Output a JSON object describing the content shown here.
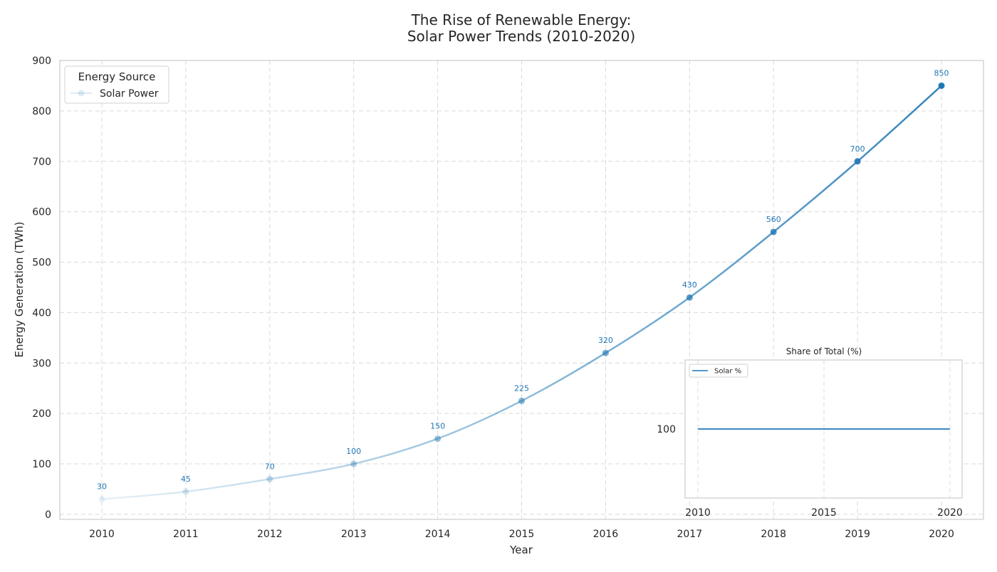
{
  "chart_data": [
    {
      "type": "line",
      "title_lines": [
        "The Rise of Renewable Energy:",
        "Solar Power Trends (2010-2020)"
      ],
      "xlabel": "Year",
      "ylabel": "Energy Generation (TWh)",
      "x": [
        2010,
        2011,
        2012,
        2013,
        2014,
        2015,
        2016,
        2017,
        2018,
        2019,
        2020
      ],
      "xticks": [
        "2010",
        "2011",
        "2012",
        "2013",
        "2014",
        "2015",
        "2016",
        "2017",
        "2018",
        "2019",
        "2020"
      ],
      "yticks": [
        0,
        100,
        200,
        300,
        400,
        500,
        600,
        700,
        800,
        900
      ],
      "ylim": [
        -10,
        900
      ],
      "xlim": [
        2009.5,
        2020.5
      ],
      "grid": true,
      "series": [
        {
          "name": "Solar Power",
          "values": [
            30,
            45,
            70,
            100,
            150,
            225,
            320,
            430,
            560,
            700,
            850
          ],
          "data_labels": [
            "30",
            "45",
            "70",
            "100",
            "150",
            "225",
            "320",
            "430",
            "560",
            "700",
            "850"
          ]
        }
      ],
      "legend": {
        "title": "Energy Source",
        "placement": "top-left",
        "entries": [
          "Solar Power"
        ]
      },
      "colors": {
        "line": "#1f77b4",
        "grid": "#d9d9d9",
        "frame": "#cccccc",
        "text": "#262626"
      }
    },
    {
      "type": "line",
      "title": "Share of Total (%)",
      "x": [
        2010,
        2011,
        2012,
        2013,
        2014,
        2015,
        2016,
        2017,
        2018,
        2019,
        2020
      ],
      "xticks": [
        "2010",
        "2015",
        "2020"
      ],
      "yticks": [
        "100"
      ],
      "ylim": [
        80,
        120
      ],
      "xlim": [
        2009.5,
        2020.5
      ],
      "grid": true,
      "series": [
        {
          "name": "Solar %",
          "values": [
            100,
            100,
            100,
            100,
            100,
            100,
            100,
            100,
            100,
            100,
            100
          ]
        }
      ],
      "legend": {
        "placement": "top-left",
        "entries": [
          "Solar %"
        ]
      }
    }
  ]
}
